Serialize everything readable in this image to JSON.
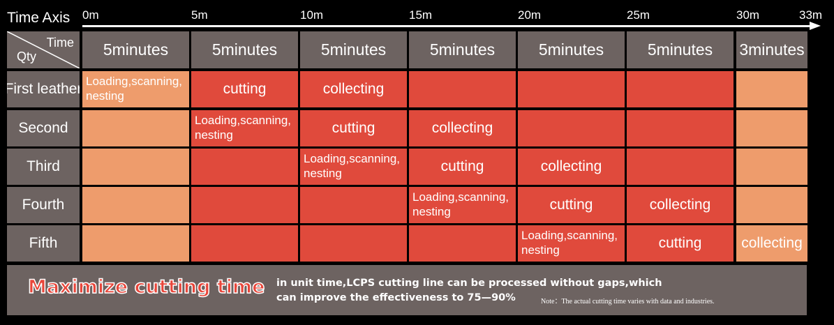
{
  "axis": {
    "title": "Time Axis",
    "ticks": [
      "0m",
      "5m",
      "10m",
      "15m",
      "20m",
      "25m",
      "30m",
      "33m"
    ]
  },
  "corner": {
    "time_label": "Time",
    "qty_label": "Qty"
  },
  "columns": [
    "5minutes",
    "5minutes",
    "5minutes",
    "5minutes",
    "5minutes",
    "5minutes",
    "3minutes"
  ],
  "rows": [
    {
      "label": "First leather",
      "cells": [
        {
          "color": "peach",
          "text": "Loading,scanning,\nnesting",
          "kind": "load"
        },
        {
          "color": "red",
          "text": "cutting",
          "kind": "step"
        },
        {
          "color": "red",
          "text": "collecting",
          "kind": "step"
        },
        {
          "color": "red",
          "text": "",
          "kind": "empty"
        },
        {
          "color": "red",
          "text": "",
          "kind": "empty"
        },
        {
          "color": "red",
          "text": "",
          "kind": "empty"
        },
        {
          "color": "peach",
          "text": "",
          "kind": "empty"
        }
      ]
    },
    {
      "label": "Second",
      "cells": [
        {
          "color": "peach",
          "text": "",
          "kind": "empty"
        },
        {
          "color": "red",
          "text": "Loading,scanning,\nnesting",
          "kind": "load"
        },
        {
          "color": "red",
          "text": "cutting",
          "kind": "step"
        },
        {
          "color": "red",
          "text": "collecting",
          "kind": "step"
        },
        {
          "color": "red",
          "text": "",
          "kind": "empty"
        },
        {
          "color": "red",
          "text": "",
          "kind": "empty"
        },
        {
          "color": "peach",
          "text": "",
          "kind": "empty"
        }
      ]
    },
    {
      "label": "Third",
      "cells": [
        {
          "color": "peach",
          "text": "",
          "kind": "empty"
        },
        {
          "color": "red",
          "text": "",
          "kind": "empty"
        },
        {
          "color": "red",
          "text": "Loading,scanning,\nnesting",
          "kind": "load"
        },
        {
          "color": "red",
          "text": "cutting",
          "kind": "step"
        },
        {
          "color": "red",
          "text": "collecting",
          "kind": "step"
        },
        {
          "color": "red",
          "text": "",
          "kind": "empty"
        },
        {
          "color": "peach",
          "text": "",
          "kind": "empty"
        }
      ]
    },
    {
      "label": "Fourth",
      "cells": [
        {
          "color": "peach",
          "text": "",
          "kind": "empty"
        },
        {
          "color": "red",
          "text": "",
          "kind": "empty"
        },
        {
          "color": "red",
          "text": "",
          "kind": "empty"
        },
        {
          "color": "red",
          "text": "Loading,scanning,\nnesting",
          "kind": "load"
        },
        {
          "color": "red",
          "text": "cutting",
          "kind": "step"
        },
        {
          "color": "red",
          "text": "collecting",
          "kind": "step"
        },
        {
          "color": "peach",
          "text": "",
          "kind": "empty"
        }
      ]
    },
    {
      "label": "Fifth",
      "cells": [
        {
          "color": "peach",
          "text": "",
          "kind": "empty"
        },
        {
          "color": "red",
          "text": "",
          "kind": "empty"
        },
        {
          "color": "red",
          "text": "",
          "kind": "empty"
        },
        {
          "color": "red",
          "text": "",
          "kind": "empty"
        },
        {
          "color": "red",
          "text": "Loading,scanning,\nnesting",
          "kind": "load"
        },
        {
          "color": "red",
          "text": "cutting",
          "kind": "step"
        },
        {
          "color": "peach",
          "text": "collecting",
          "kind": "step"
        }
      ]
    }
  ],
  "footer": {
    "headline": "Maximize cutting time",
    "line1": "in unit time,LCPS cutting line can be processed without gaps,which",
    "line2": "can improve the effectiveness to 75—90%",
    "note": "Note：The actual cutting time varies with data and industries."
  },
  "colors": {
    "header_gray": "#6d6361",
    "peach": "#ee9c6c",
    "red": "#e04a3c",
    "headline_red": "#e8463a"
  }
}
